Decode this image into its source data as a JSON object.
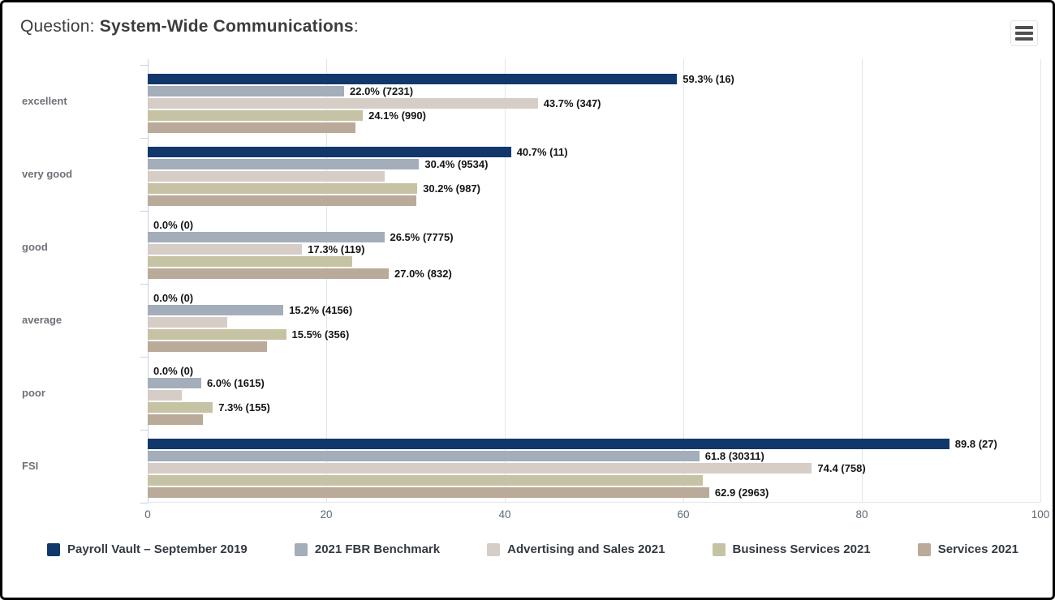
{
  "header": {
    "title_prefix": "Question: ",
    "title_main": "System-Wide Communications",
    "title_suffix": ":"
  },
  "menu": {
    "icon": "hamburger-icon"
  },
  "chart_data": {
    "type": "bar",
    "orientation": "horizontal",
    "title": "Question: System-Wide Communications:",
    "categories": [
      "excellent",
      "very good",
      "good",
      "average",
      "poor",
      "FSI"
    ],
    "series": [
      {
        "name": "Payroll Vault – September 2019",
        "color": "#12386b",
        "values": [
          59.3,
          40.7,
          0.0,
          0.0,
          0.0,
          89.8
        ],
        "labels": [
          "59.3% (16)",
          "40.7% (11)",
          "0.0% (0)",
          "0.0% (0)",
          "0.0% (0)",
          "89.8 (27)"
        ]
      },
      {
        "name": "2021 FBR Benchmark",
        "color": "#a4adba",
        "values": [
          22.0,
          30.4,
          26.5,
          15.2,
          6.0,
          61.8
        ],
        "labels": [
          "22.0% (7231)",
          "30.4% (9534)",
          "26.5% (7775)",
          "15.2% (4156)",
          "6.0% (1615)",
          "61.8 (30311)"
        ]
      },
      {
        "name": "Advertising and Sales 2021",
        "color": "#d5cdc6",
        "values": [
          43.7,
          26.5,
          17.3,
          8.9,
          3.8,
          74.4
        ],
        "labels": [
          "43.7% (347)",
          null,
          "17.3% (119)",
          null,
          null,
          "74.4 (758)"
        ]
      },
      {
        "name": "Business Services 2021",
        "color": "#c6c2a4",
        "values": [
          24.1,
          30.2,
          22.9,
          15.5,
          7.3,
          62.2
        ],
        "labels": [
          "24.1% (990)",
          "30.2% (987)",
          null,
          "15.5% (356)",
          "7.3% (155)",
          null
        ]
      },
      {
        "name": "Services 2021",
        "color": "#b9aa99",
        "values": [
          23.3,
          30.1,
          27.0,
          13.4,
          6.2,
          62.9
        ],
        "labels": [
          null,
          null,
          "27.0% (832)",
          null,
          null,
          "62.9 (2963)"
        ]
      }
    ],
    "xticks": [
      "0",
      "20",
      "40",
      "60",
      "80",
      "100"
    ],
    "xlim": [
      0,
      100
    ],
    "grid": true,
    "legend_position": "bottom",
    "axis_color": "#c6d2e1",
    "grid_color": "#e2e6eb",
    "tick_label_color": "#5e6973",
    "category_label_color": "#6d7179",
    "data_label_color": "#141414"
  }
}
